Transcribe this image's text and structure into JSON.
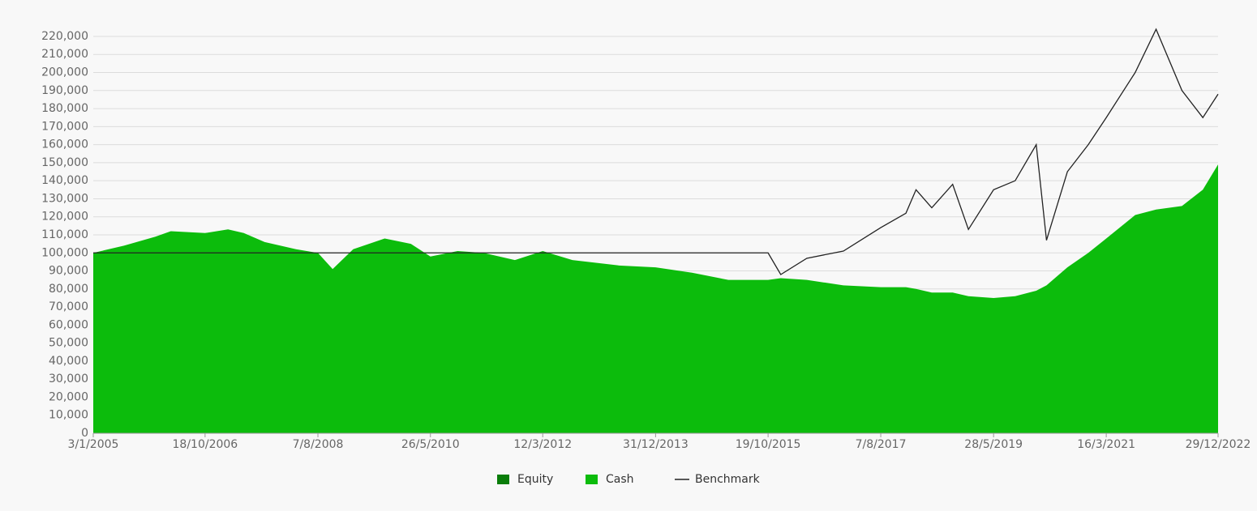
{
  "chart_data": {
    "type": "stacked-area",
    "x": [
      "3/1/2005",
      "1/7/2005",
      "1/1/2006",
      "1/4/2006",
      "18/10/2006",
      "1/3/2007",
      "1/6/2007",
      "1/10/2007",
      "1/4/2008",
      "7/8/2008",
      "1/11/2008",
      "1/3/2009",
      "1/9/2009",
      "1/2/2010",
      "26/5/2010",
      "1/11/2010",
      "1/4/2011",
      "1/10/2011",
      "12/3/2012",
      "1/9/2012",
      "1/6/2013",
      "31/12/2013",
      "1/8/2014",
      "1/3/2015",
      "19/10/2015",
      "1/1/2016",
      "1/6/2016",
      "1/1/2017",
      "7/8/2017",
      "1/1/2018",
      "1/3/2018",
      "1/6/2018",
      "1/10/2018",
      "1/1/2019",
      "28/5/2019",
      "1/10/2019",
      "1/2/2020",
      "1/4/2020",
      "1/8/2020",
      "1/12/2020",
      "16/3/2021",
      "1/9/2021",
      "1/1/2022",
      "1/6/2022",
      "1/10/2022",
      "29/12/2022"
    ],
    "series": [
      {
        "name": "Equity",
        "color": "#0a7d0a",
        "kind": "area",
        "values": [
          0,
          0,
          0,
          0,
          0,
          0,
          0,
          0,
          0,
          0,
          0,
          0,
          0,
          0,
          0,
          0,
          0,
          0,
          0,
          0,
          0,
          0,
          0,
          0,
          0,
          0,
          0,
          0,
          0,
          0,
          0,
          0,
          0,
          0,
          0,
          0,
          0,
          0,
          0,
          0,
          0,
          0,
          0,
          0,
          0,
          0
        ]
      },
      {
        "name": "Cash",
        "color": "#0cbc0c",
        "kind": "area",
        "values": [
          100000,
          104000,
          109000,
          112000,
          111000,
          113000,
          111000,
          106000,
          102000,
          100000,
          91000,
          102000,
          108000,
          105000,
          98000,
          101000,
          100000,
          96000,
          101000,
          96000,
          93000,
          92000,
          89000,
          85000,
          85000,
          86000,
          85000,
          82000,
          81000,
          81000,
          80000,
          78000,
          78000,
          76000,
          75000,
          76000,
          79000,
          82000,
          92000,
          100000,
          108000,
          121000,
          124000,
          126000,
          135000,
          149000
        ]
      },
      {
        "name": "Benchmark",
        "color": "#222222",
        "kind": "line",
        "values": [
          100000,
          100000,
          100000,
          100000,
          100000,
          100000,
          100000,
          100000,
          100000,
          100000,
          100000,
          100000,
          100000,
          100000,
          100000,
          100000,
          100000,
          100000,
          100000,
          100000,
          100000,
          100000,
          100000,
          100000,
          100000,
          88000,
          97000,
          101000,
          114000,
          122000,
          135000,
          125000,
          138000,
          113000,
          135000,
          140000,
          160000,
          107000,
          145000,
          160000,
          175000,
          200000,
          224000,
          190000,
          175000,
          188000
        ]
      }
    ],
    "xlim": [
      "3/1/2005",
      "29/12/2022"
    ],
    "xticks": [
      "3/1/2005",
      "18/10/2006",
      "7/8/2008",
      "26/5/2010",
      "12/3/2012",
      "31/12/2013",
      "19/10/2015",
      "7/8/2017",
      "28/5/2019",
      "16/3/2021",
      "29/12/2022"
    ],
    "ylim": [
      0,
      230000
    ],
    "yticks": [
      0,
      {
        "value": 10000,
        "label": "10,000"
      },
      {
        "value": 20000,
        "label": "20,000"
      },
      {
        "value": 30000,
        "label": "30,000"
      },
      {
        "value": 40000,
        "label": "40,000"
      },
      {
        "value": 50000,
        "label": "50,000"
      },
      {
        "value": 60000,
        "label": "60,000"
      },
      {
        "value": 70000,
        "label": "70,000"
      },
      {
        "value": 80000,
        "label": "80,000"
      },
      {
        "value": 90000,
        "label": "90,000"
      },
      {
        "value": 100000,
        "label": "100,000"
      },
      {
        "value": 110000,
        "label": "110,000"
      },
      {
        "value": 120000,
        "label": "120,000"
      },
      {
        "value": 130000,
        "label": "130,000"
      },
      {
        "value": 140000,
        "label": "140,000"
      },
      {
        "value": 150000,
        "label": "150,000"
      },
      {
        "value": 160000,
        "label": "160,000"
      },
      {
        "value": 170000,
        "label": "170,000"
      },
      {
        "value": 180000,
        "label": "180,000"
      },
      {
        "value": 190000,
        "label": "190,000"
      },
      {
        "value": 200000,
        "label": "200,000"
      },
      {
        "value": 210000,
        "label": "210,000"
      },
      {
        "value": 220000,
        "label": "220,000"
      }
    ],
    "grid": true,
    "legend": "bottom"
  }
}
